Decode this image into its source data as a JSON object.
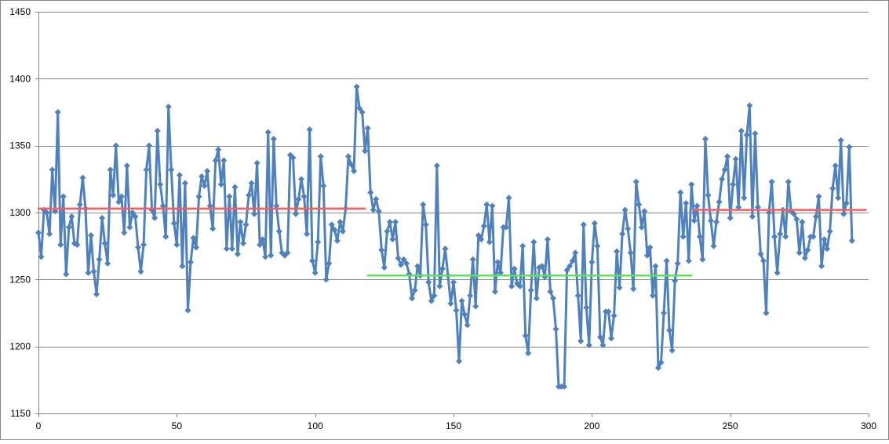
{
  "chart_data": {
    "type": "scatter",
    "title": "",
    "xlabel": "",
    "ylabel": "",
    "xlim": [
      0,
      300
    ],
    "ylim": [
      1150,
      1450
    ],
    "x_ticks": [
      0,
      50,
      100,
      150,
      200,
      250,
      300
    ],
    "y_ticks": [
      1150,
      1200,
      1250,
      1300,
      1350,
      1400,
      1450
    ],
    "grid": "horizontal",
    "legend": "none",
    "series": [
      {
        "kind": "line-with-markers",
        "color": "#4F81BD",
        "marker": "diamond",
        "x_start": 0,
        "x_step": 1,
        "y": [
          1285,
          1267,
          1302,
          1300,
          1284,
          1332,
          1301,
          1375,
          1276,
          1312,
          1254,
          1289,
          1297,
          1277,
          1276,
          1306,
          1326,
          1303,
          1255,
          1283,
          1256,
          1239,
          1265,
          1296,
          1277,
          1262,
          1332,
          1313,
          1350,
          1308,
          1312,
          1285,
          1335,
          1289,
          1300,
          1297,
          1274,
          1256,
          1276,
          1332,
          1350,
          1302,
          1296,
          1361,
          1321,
          1305,
          1282,
          1379,
          1332,
          1292,
          1276,
          1328,
          1260,
          1322,
          1227,
          1263,
          1281,
          1274,
          1312,
          1327,
          1320,
          1331,
          1305,
          1288,
          1339,
          1347,
          1321,
          1339,
          1273,
          1312,
          1273,
          1319,
          1269,
          1293,
          1277,
          1291,
          1313,
          1322,
          1299,
          1337,
          1276,
          1280,
          1267,
          1360,
          1268,
          1355,
          1305,
          1286,
          1270,
          1268,
          1270,
          1343,
          1341,
          1299,
          1310,
          1325,
          1312,
          1284,
          1362,
          1264,
          1255,
          1278,
          1342,
          1320,
          1250,
          1262,
          1291,
          1287,
          1279,
          1293,
          1286,
          1303,
          1342,
          1336,
          1331,
          1394,
          1378,
          1375,
          1346,
          1363,
          1315,
          1302,
          1310,
          1301,
          1272,
          1259,
          1286,
          1293,
          1280,
          1293,
          1266,
          1261,
          1265,
          1262,
          1254,
          1236,
          1242,
          1260,
          1253,
          1306,
          1291,
          1248,
          1234,
          1238,
          1335,
          1245,
          1258,
          1273,
          1253,
          1232,
          1248,
          1227,
          1189,
          1234,
          1224,
          1216,
          1238,
          1265,
          1230,
          1283,
          1280,
          1290,
          1306,
          1278,
          1305,
          1241,
          1263,
          1255,
          1289,
          1289,
          1311,
          1245,
          1258,
          1247,
          1245,
          1275,
          1208,
          1195,
          1242,
          1278,
          1236,
          1259,
          1260,
          1252,
          1280,
          1241,
          1236,
          1213,
          1170,
          1170,
          1170,
          1257,
          1260,
          1264,
          1270,
          1238,
          1204,
          1291,
          1229,
          1201,
          1263,
          1292,
          1275,
          1207,
          1201,
          1226,
          1226,
          1206,
          1223,
          1271,
          1244,
          1284,
          1302,
          1288,
          1270,
          1243,
          1323,
          1306,
          1289,
          1301,
          1268,
          1274,
          1238,
          1260,
          1184,
          1188,
          1225,
          1264,
          1212,
          1197,
          1249,
          1262,
          1315,
          1282,
          1307,
          1264,
          1321,
          1294,
          1305,
          1282,
          1265,
          1355,
          1313,
          1294,
          1275,
          1293,
          1308,
          1325,
          1332,
          1342,
          1296,
          1321,
          1340,
          1304,
          1361,
          1311,
          1358,
          1380,
          1297,
          1359,
          1304,
          1269,
          1264,
          1225,
          1300,
          1323,
          1282,
          1255,
          1284,
          1302,
          1282,
          1323,
          1301,
          1299,
          1295,
          1270,
          1293,
          1266,
          1272,
          1282,
          1282,
          1297,
          1312,
          1260,
          1280,
          1273,
          1286,
          1318,
          1335,
          1311,
          1354,
          1299,
          1307,
          1349,
          1279
        ]
      },
      {
        "kind": "line",
        "color": "#FF5B5B",
        "x": [
          0,
          118
        ],
        "y": [
          1303,
          1303
        ]
      },
      {
        "kind": "line",
        "color": "#5BE35B",
        "x": [
          119,
          236
        ],
        "y": [
          1253,
          1253
        ]
      },
      {
        "kind": "line",
        "color": "#FF5B5B",
        "x": [
          237,
          299
        ],
        "y": [
          1302,
          1302
        ]
      }
    ]
  }
}
